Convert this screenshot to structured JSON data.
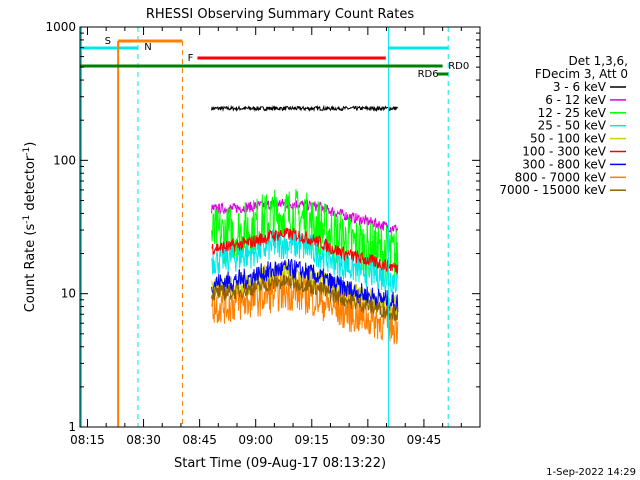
{
  "chart_data": {
    "type": "line",
    "title": "RHESSI Observing Summary Count Rates",
    "xlabel": "Start Time (09-Aug-17 08:13:22)",
    "ylabel_main": "Count Rate (s",
    "ylabel_sup1": "-1",
    "ylabel_mid": " detector",
    "ylabel_sup2": "-1",
    "ylabel_end": ")",
    "y_scale": "log",
    "ylim": [
      1,
      1000
    ],
    "xlim_minutes": [
      -2,
      105
    ],
    "x_ticks": [
      {
        "label": "08:15",
        "min": 0
      },
      {
        "label": "08:30",
        "min": 15
      },
      {
        "label": "08:45",
        "min": 30
      },
      {
        "label": "09:00",
        "min": 45
      },
      {
        "label": "09:15",
        "min": 60
      },
      {
        "label": "09:30",
        "min": 75
      },
      {
        "label": "09:45",
        "min": 90
      }
    ],
    "y_ticks": [
      {
        "label": "1",
        "v": 1
      },
      {
        "label": "10",
        "v": 10
      },
      {
        "label": "100",
        "v": 100
      },
      {
        "label": "1000",
        "v": 1000
      }
    ],
    "legend_header": [
      "Det 1,3,6,",
      "FDecim 3, Att 0"
    ],
    "series": [
      {
        "name": "3 - 6 keV",
        "color": "#000000",
        "base": 245,
        "bump": 0.0,
        "noise": 0.015
      },
      {
        "name": "6 - 12 keV",
        "color": "#e000e0",
        "base": 43,
        "bump": 0.12,
        "noise": 0.04
      },
      {
        "name": "12 - 25 keV",
        "color": "#00ff00",
        "base": 27,
        "bump": 0.45,
        "noise": 0.22
      },
      {
        "name": "25 - 50 keV",
        "color": "#00e8e8",
        "base": 18,
        "bump": 0.35,
        "noise": 0.12
      },
      {
        "name": "50 - 100 keV",
        "color": "#d0d000",
        "base": 11,
        "bump": 0.3,
        "noise": 0.1
      },
      {
        "name": "100 - 300 keV",
        "color": "#ff0000",
        "base": 22,
        "bump": 0.3,
        "noise": 0.05
      },
      {
        "name": "300 - 800 keV",
        "color": "#0000ff",
        "base": 12,
        "bump": 0.3,
        "noise": 0.08
      },
      {
        "name": "800 - 7000 keV",
        "color": "#ff8000",
        "base": 8,
        "bump": 0.3,
        "noise": 0.14
      },
      {
        "name": "7000 - 15000 keV",
        "color": "#906000",
        "base": 10,
        "bump": 0.25,
        "noise": 0.06
      }
    ],
    "annotations": {
      "saa_label": "S",
      "night_label": "N",
      "flare_label": "F",
      "rd0_label": "RD0",
      "rd6_label": "RD6"
    },
    "timestamp": "1-Sep-2022 14:29"
  }
}
